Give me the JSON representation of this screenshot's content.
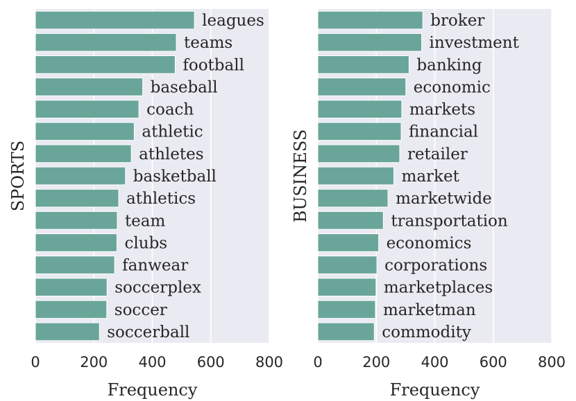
{
  "colors": {
    "background": "#eaeaf2",
    "bar": "#6aa59a",
    "grid": "#ffffff",
    "text": "#262626"
  },
  "chart_data": [
    {
      "type": "bar",
      "orientation": "horizontal",
      "ylabel": "SPORTS",
      "xlabel": "Frequency",
      "xlim": [
        0,
        800
      ],
      "xticks": [
        0,
        200,
        400,
        600,
        800
      ],
      "grid": true,
      "categories": [
        "leagues",
        "teams",
        "football",
        "baseball",
        "coach",
        "athletic",
        "athletes",
        "basketball",
        "athletics",
        "team",
        "clubs",
        "fanwear",
        "soccerplex",
        "soccer",
        "soccerball"
      ],
      "values": [
        544,
        482,
        478,
        367,
        354,
        338,
        328,
        308,
        285,
        280,
        279,
        271,
        245,
        244,
        219
      ]
    },
    {
      "type": "bar",
      "orientation": "horizontal",
      "ylabel": "BUSINESS",
      "xlabel": "Frequency",
      "xlim": [
        0,
        800
      ],
      "xticks": [
        0,
        200,
        400,
        600,
        800
      ],
      "grid": true,
      "categories": [
        "broker",
        "investment",
        "banking",
        "economic",
        "markets",
        "financial",
        "retailer",
        "market",
        "marketwide",
        "transportation",
        "economics",
        "corporations",
        "marketplaces",
        "marketman",
        "commodity"
      ],
      "values": [
        359,
        355,
        312,
        301,
        287,
        285,
        280,
        260,
        240,
        224,
        208,
        202,
        199,
        197,
        193
      ]
    }
  ]
}
